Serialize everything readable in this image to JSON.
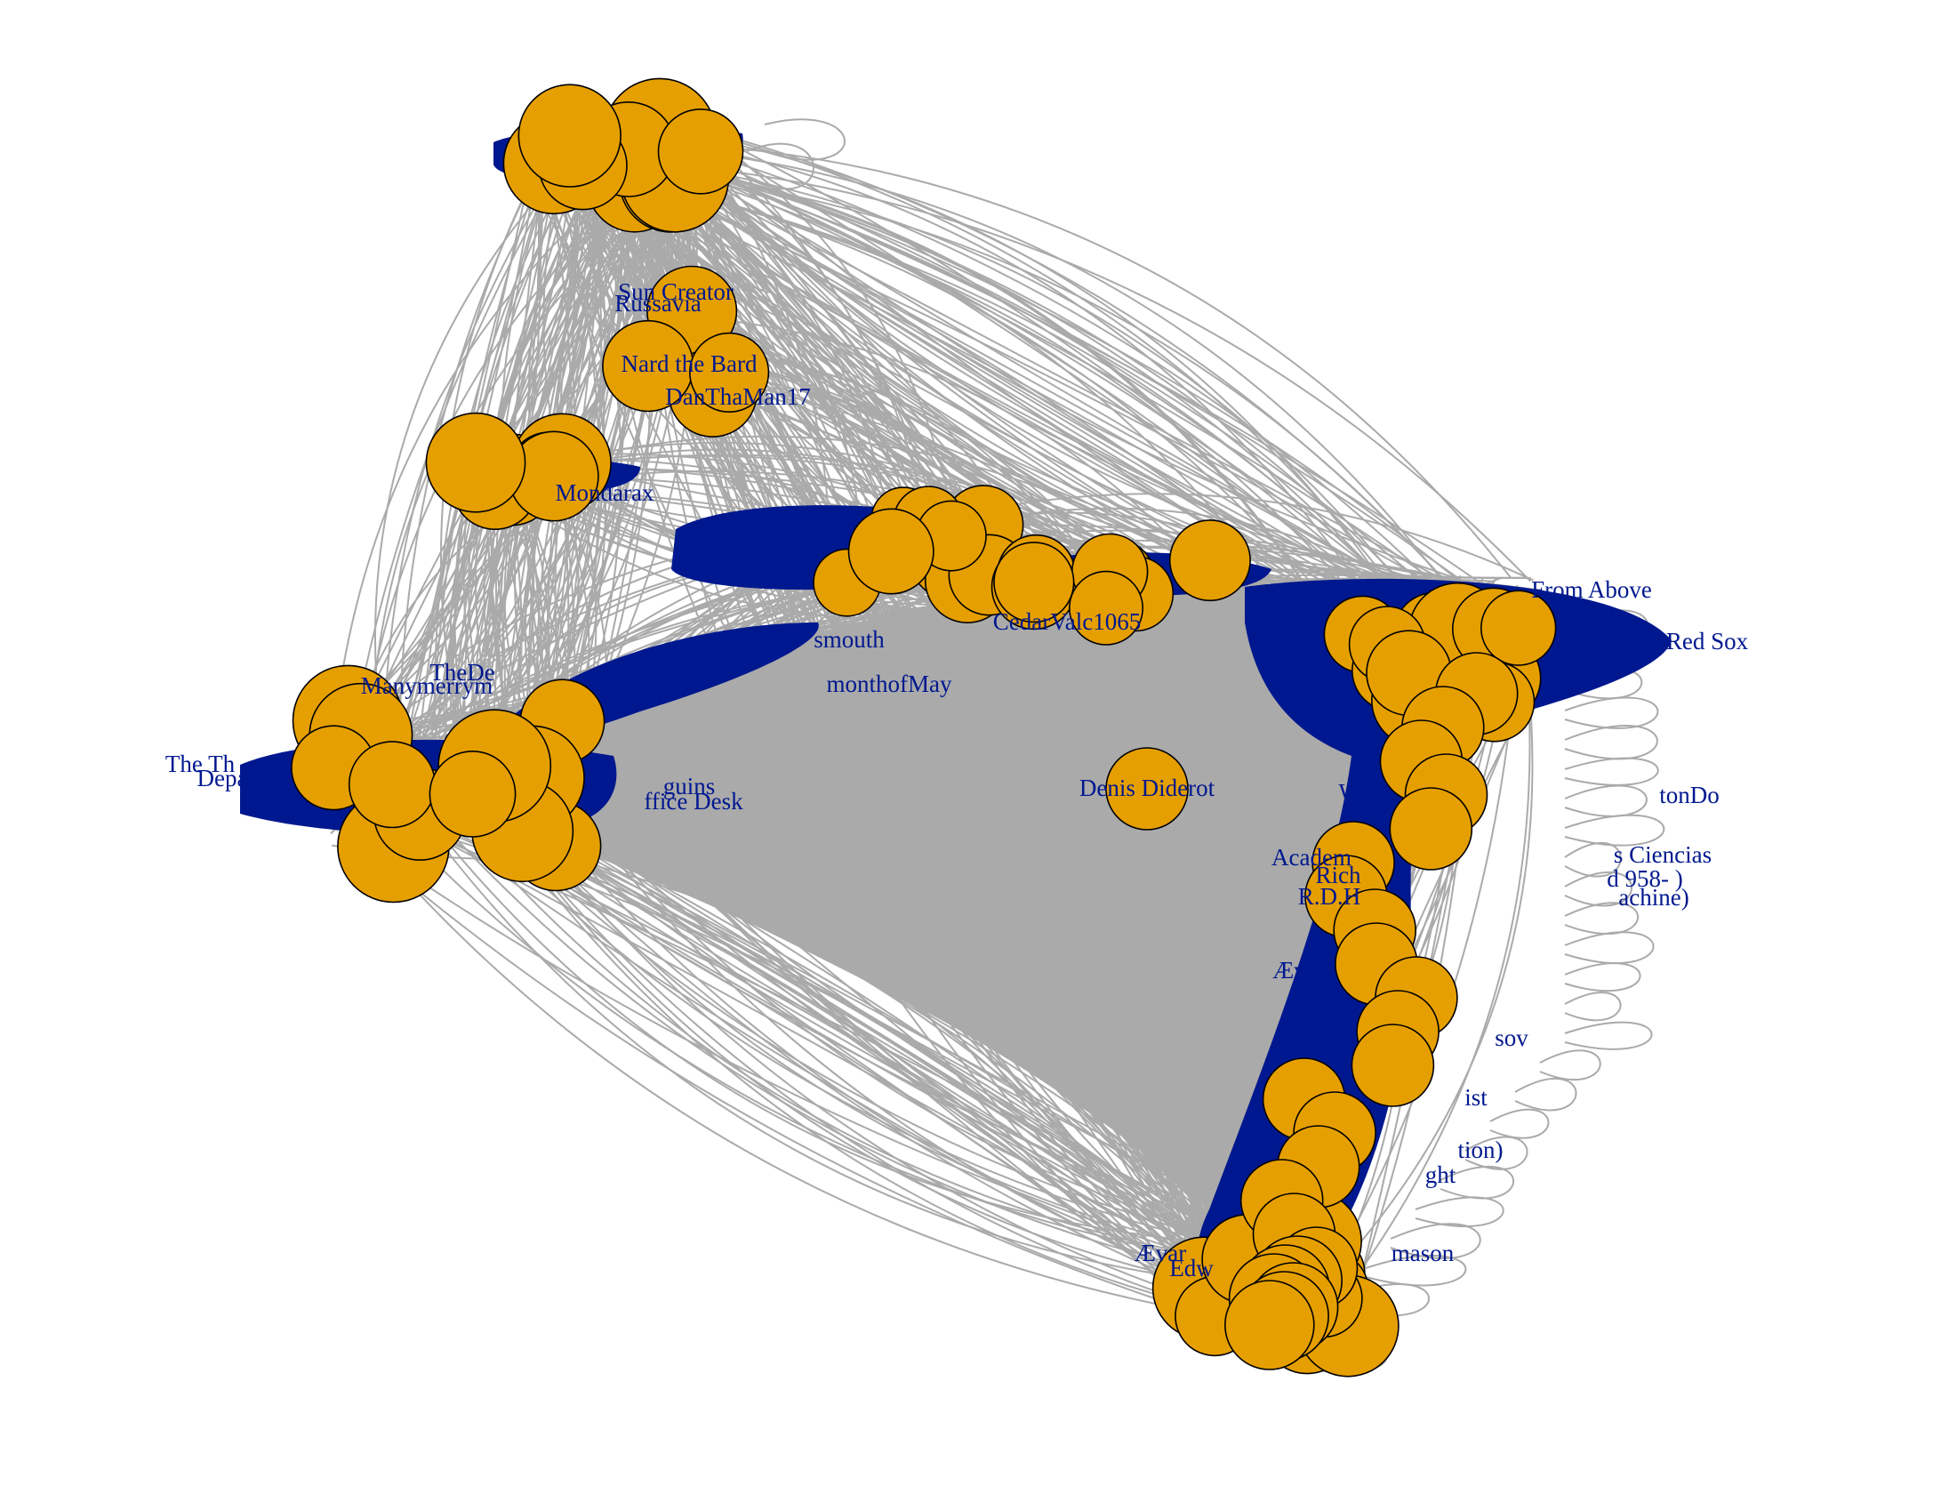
{
  "colors": {
    "background": "#ffffff",
    "edge": "#aaaaaa",
    "node_fill": "#e69f00",
    "node_stroke": "#000000",
    "label": "#00188f"
  },
  "nodes": [
    {
      "id": "denis",
      "label": "Denis Diderot",
      "cluster": "center"
    },
    {
      "id": "sun",
      "label": "Sun Creator",
      "cluster": "mid"
    },
    {
      "id": "russavia",
      "label": "Russavia",
      "cluster": "mid"
    },
    {
      "id": "nard",
      "label": "Nard the Bard",
      "cluster": "mid"
    },
    {
      "id": "danthaman",
      "label": "DanThaMan17",
      "cluster": "mid"
    },
    {
      "id": "cedar",
      "label": "CedarValc1065",
      "cluster": "bridge"
    },
    {
      "id": "mondarax",
      "label": "Mondarax",
      "cluster": "upper-left"
    },
    {
      "id": "manymerry",
      "label": "Manymerrym",
      "cluster": "left"
    },
    {
      "id": "monthofmay",
      "label": "monthofMay",
      "cluster": "left"
    },
    {
      "id": "thede",
      "label": "TheDe",
      "cluster": "left"
    },
    {
      "id": "ffice",
      "label": "ffice Desk",
      "cluster": "left"
    },
    {
      "id": "depa",
      "label": "Depa",
      "cluster": "left"
    },
    {
      "id": "theth",
      "label": "The Th",
      "cluster": "left"
    },
    {
      "id": "guins",
      "label": "guins",
      "cluster": "left"
    },
    {
      "id": "smouth",
      "label": "smouth",
      "cluster": "left"
    },
    {
      "id": "fromabove",
      "label": "From Above",
      "cluster": "right"
    },
    {
      "id": "redsox",
      "label": "Red Sox",
      "cluster": "right"
    },
    {
      "id": "ciencias",
      "label": "s Ciencias",
      "cluster": "right"
    },
    {
      "id": "d958",
      "label": "d 958- )",
      "cluster": "right"
    },
    {
      "id": "machine",
      "label": "achine)",
      "cluster": "right"
    },
    {
      "id": "academ",
      "label": "Academ",
      "cluster": "right"
    },
    {
      "id": "rdh",
      "label": "R.D.H",
      "cluster": "right"
    },
    {
      "id": "rich",
      "label": "Rich",
      "cluster": "right"
    },
    {
      "id": "wh",
      "label": "Wh",
      "cluster": "right"
    },
    {
      "id": "tondo",
      "label": "tonDo",
      "cluster": "right"
    },
    {
      "id": "vr",
      "label": "Vr",
      "cluster": "right"
    },
    {
      "id": "aevar",
      "label": "Ævar",
      "cluster": "bottom"
    },
    {
      "id": "aev",
      "label": "Æv",
      "cluster": "bottom"
    },
    {
      "id": "edw",
      "label": "Edw",
      "cluster": "bottom"
    },
    {
      "id": "mason",
      "label": "mason",
      "cluster": "bottom"
    },
    {
      "id": "tion",
      "label": "tion)",
      "cluster": "bottom"
    },
    {
      "id": "ght",
      "label": "ght",
      "cluster": "bottom"
    },
    {
      "id": "rasov",
      "label": "sov",
      "cluster": "bottom"
    },
    {
      "id": "ist",
      "label": "ist",
      "cluster": "bottom"
    }
  ]
}
